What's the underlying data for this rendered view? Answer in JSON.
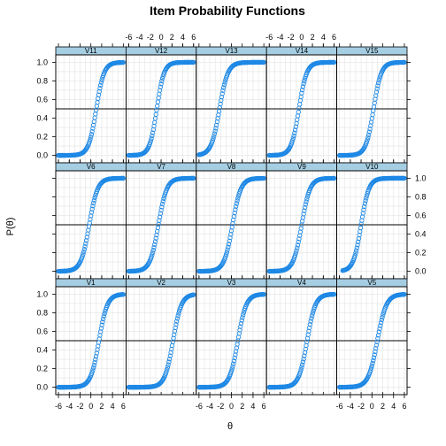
{
  "chart_data": {
    "type": "scatter",
    "title": "Item Probability Functions",
    "xlabel": "θ",
    "ylabel": "P(θ)",
    "xlim": [
      -6.5,
      6.5
    ],
    "ylim": [
      -0.08,
      1.08
    ],
    "x_ticks": [
      -6,
      -4,
      -2,
      0,
      2,
      4,
      6
    ],
    "y_ticks": [
      0.0,
      0.2,
      0.4,
      0.6,
      0.8,
      1.0
    ],
    "y_tick_labels": [
      "0.0",
      "0.2",
      "0.4",
      "0.6",
      "0.8",
      "1.0"
    ],
    "x_tick_labels": [
      "-6",
      "-4",
      "-2",
      "0",
      "2",
      "4",
      "6"
    ],
    "reference_line_y": 0.5,
    "grid": true,
    "point_color": "#1e88e5",
    "strip_color": "#a6cee3",
    "layout": {
      "rows": 3,
      "cols": 5
    },
    "panels": [
      {
        "name": "V11",
        "row": 0,
        "col": 0,
        "a": 1.4,
        "b": 1.0,
        "x_range": [
          -6,
          6
        ]
      },
      {
        "name": "V12",
        "row": 0,
        "col": 1,
        "a": 1.5,
        "b": -0.8,
        "x_range": [
          -6,
          6
        ]
      },
      {
        "name": "V13",
        "row": 0,
        "col": 2,
        "a": 1.3,
        "b": -2.2,
        "x_range": [
          -6,
          6
        ]
      },
      {
        "name": "V14",
        "row": 0,
        "col": 3,
        "a": 1.4,
        "b": -0.5,
        "x_range": [
          -6,
          6
        ]
      },
      {
        "name": "V15",
        "row": 0,
        "col": 4,
        "a": 1.4,
        "b": 0.3,
        "x_range": [
          -6,
          6
        ]
      },
      {
        "name": "V6",
        "row": 1,
        "col": 0,
        "a": 1.3,
        "b": -0.3,
        "x_range": [
          -6,
          6
        ]
      },
      {
        "name": "V7",
        "row": 1,
        "col": 1,
        "a": 1.3,
        "b": -0.5,
        "x_range": [
          -6,
          6
        ]
      },
      {
        "name": "V8",
        "row": 1,
        "col": 2,
        "a": 1.3,
        "b": 0.2,
        "x_range": [
          -6,
          6
        ]
      },
      {
        "name": "V9",
        "row": 1,
        "col": 3,
        "a": 1.3,
        "b": 0.0,
        "x_range": [
          -6,
          6
        ]
      },
      {
        "name": "V10",
        "row": 1,
        "col": 4,
        "a": 1.4,
        "b": -2.0,
        "x_range": [
          -5.4,
          6
        ]
      },
      {
        "name": "V1",
        "row": 2,
        "col": 0,
        "a": 1.3,
        "b": 1.5,
        "x_range": [
          -6,
          6
        ]
      },
      {
        "name": "V2",
        "row": 2,
        "col": 1,
        "a": 1.3,
        "b": 2.2,
        "x_range": [
          -6,
          6
        ]
      },
      {
        "name": "V3",
        "row": 2,
        "col": 2,
        "a": 1.3,
        "b": 1.2,
        "x_range": [
          -6,
          6
        ]
      },
      {
        "name": "V4",
        "row": 2,
        "col": 3,
        "a": 1.3,
        "b": 1.0,
        "x_range": [
          -6,
          6
        ]
      },
      {
        "name": "V5",
        "row": 2,
        "col": 4,
        "a": 1.2,
        "b": 1.0,
        "x_range": [
          -6,
          6
        ]
      }
    ]
  }
}
